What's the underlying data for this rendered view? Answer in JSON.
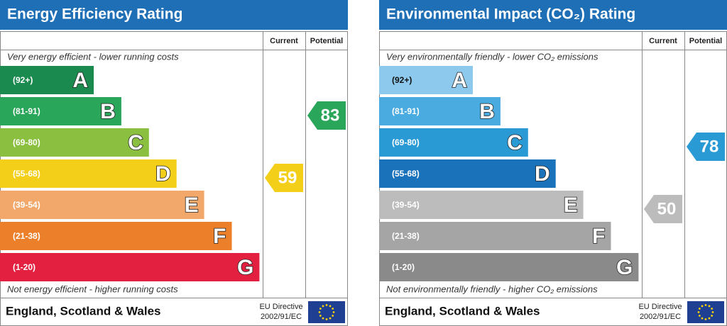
{
  "panels": [
    {
      "title": "Energy Efficiency Rating",
      "current_label": "Current",
      "potential_label": "Potential",
      "top_note": "Very energy efficient - lower running costs",
      "bottom_note": "Not energy efficient - higher running costs",
      "bands": [
        {
          "range": "(92+)",
          "letter": "A",
          "color": "#1a8a4f"
        },
        {
          "range": "(81-91)",
          "letter": "B",
          "color": "#2aa65a"
        },
        {
          "range": "(69-80)",
          "letter": "C",
          "color": "#8bbf3f"
        },
        {
          "range": "(55-68)",
          "letter": "D",
          "color": "#f4cf1a"
        },
        {
          "range": "(39-54)",
          "letter": "E",
          "color": "#f2a86b"
        },
        {
          "range": "(21-38)",
          "letter": "F",
          "color": "#ec7f2a"
        },
        {
          "range": "(1-20)",
          "letter": "G",
          "color": "#e3203f"
        }
      ],
      "current": 59,
      "potential": 83,
      "region": "England, Scotland & Wales",
      "directive": [
        "EU Directive",
        "2002/91/EC"
      ]
    },
    {
      "title": "Environmental Impact (CO₂) Rating",
      "current_label": "Current",
      "potential_label": "Potential",
      "top_note": "Very environmentally friendly - lower CO₂ emissions",
      "bottom_note": "Not environmentally friendly - higher CO₂ emissions",
      "bands": [
        {
          "range": "(92+)",
          "letter": "A",
          "color": "#8cc9ec"
        },
        {
          "range": "(81-91)",
          "letter": "B",
          "color": "#4aabe0"
        },
        {
          "range": "(69-80)",
          "letter": "C",
          "color": "#2a9ad5"
        },
        {
          "range": "(55-68)",
          "letter": "D",
          "color": "#1a72bb"
        },
        {
          "range": "(39-54)",
          "letter": "E",
          "color": "#bcbcbc"
        },
        {
          "range": "(21-38)",
          "letter": "F",
          "color": "#a5a5a5"
        },
        {
          "range": "(1-20)",
          "letter": "G",
          "color": "#8a8a8a"
        }
      ],
      "current": 50,
      "potential": 78,
      "region": "England, Scotland & Wales",
      "directive": [
        "EU Directive",
        "2002/91/EC"
      ]
    }
  ]
}
